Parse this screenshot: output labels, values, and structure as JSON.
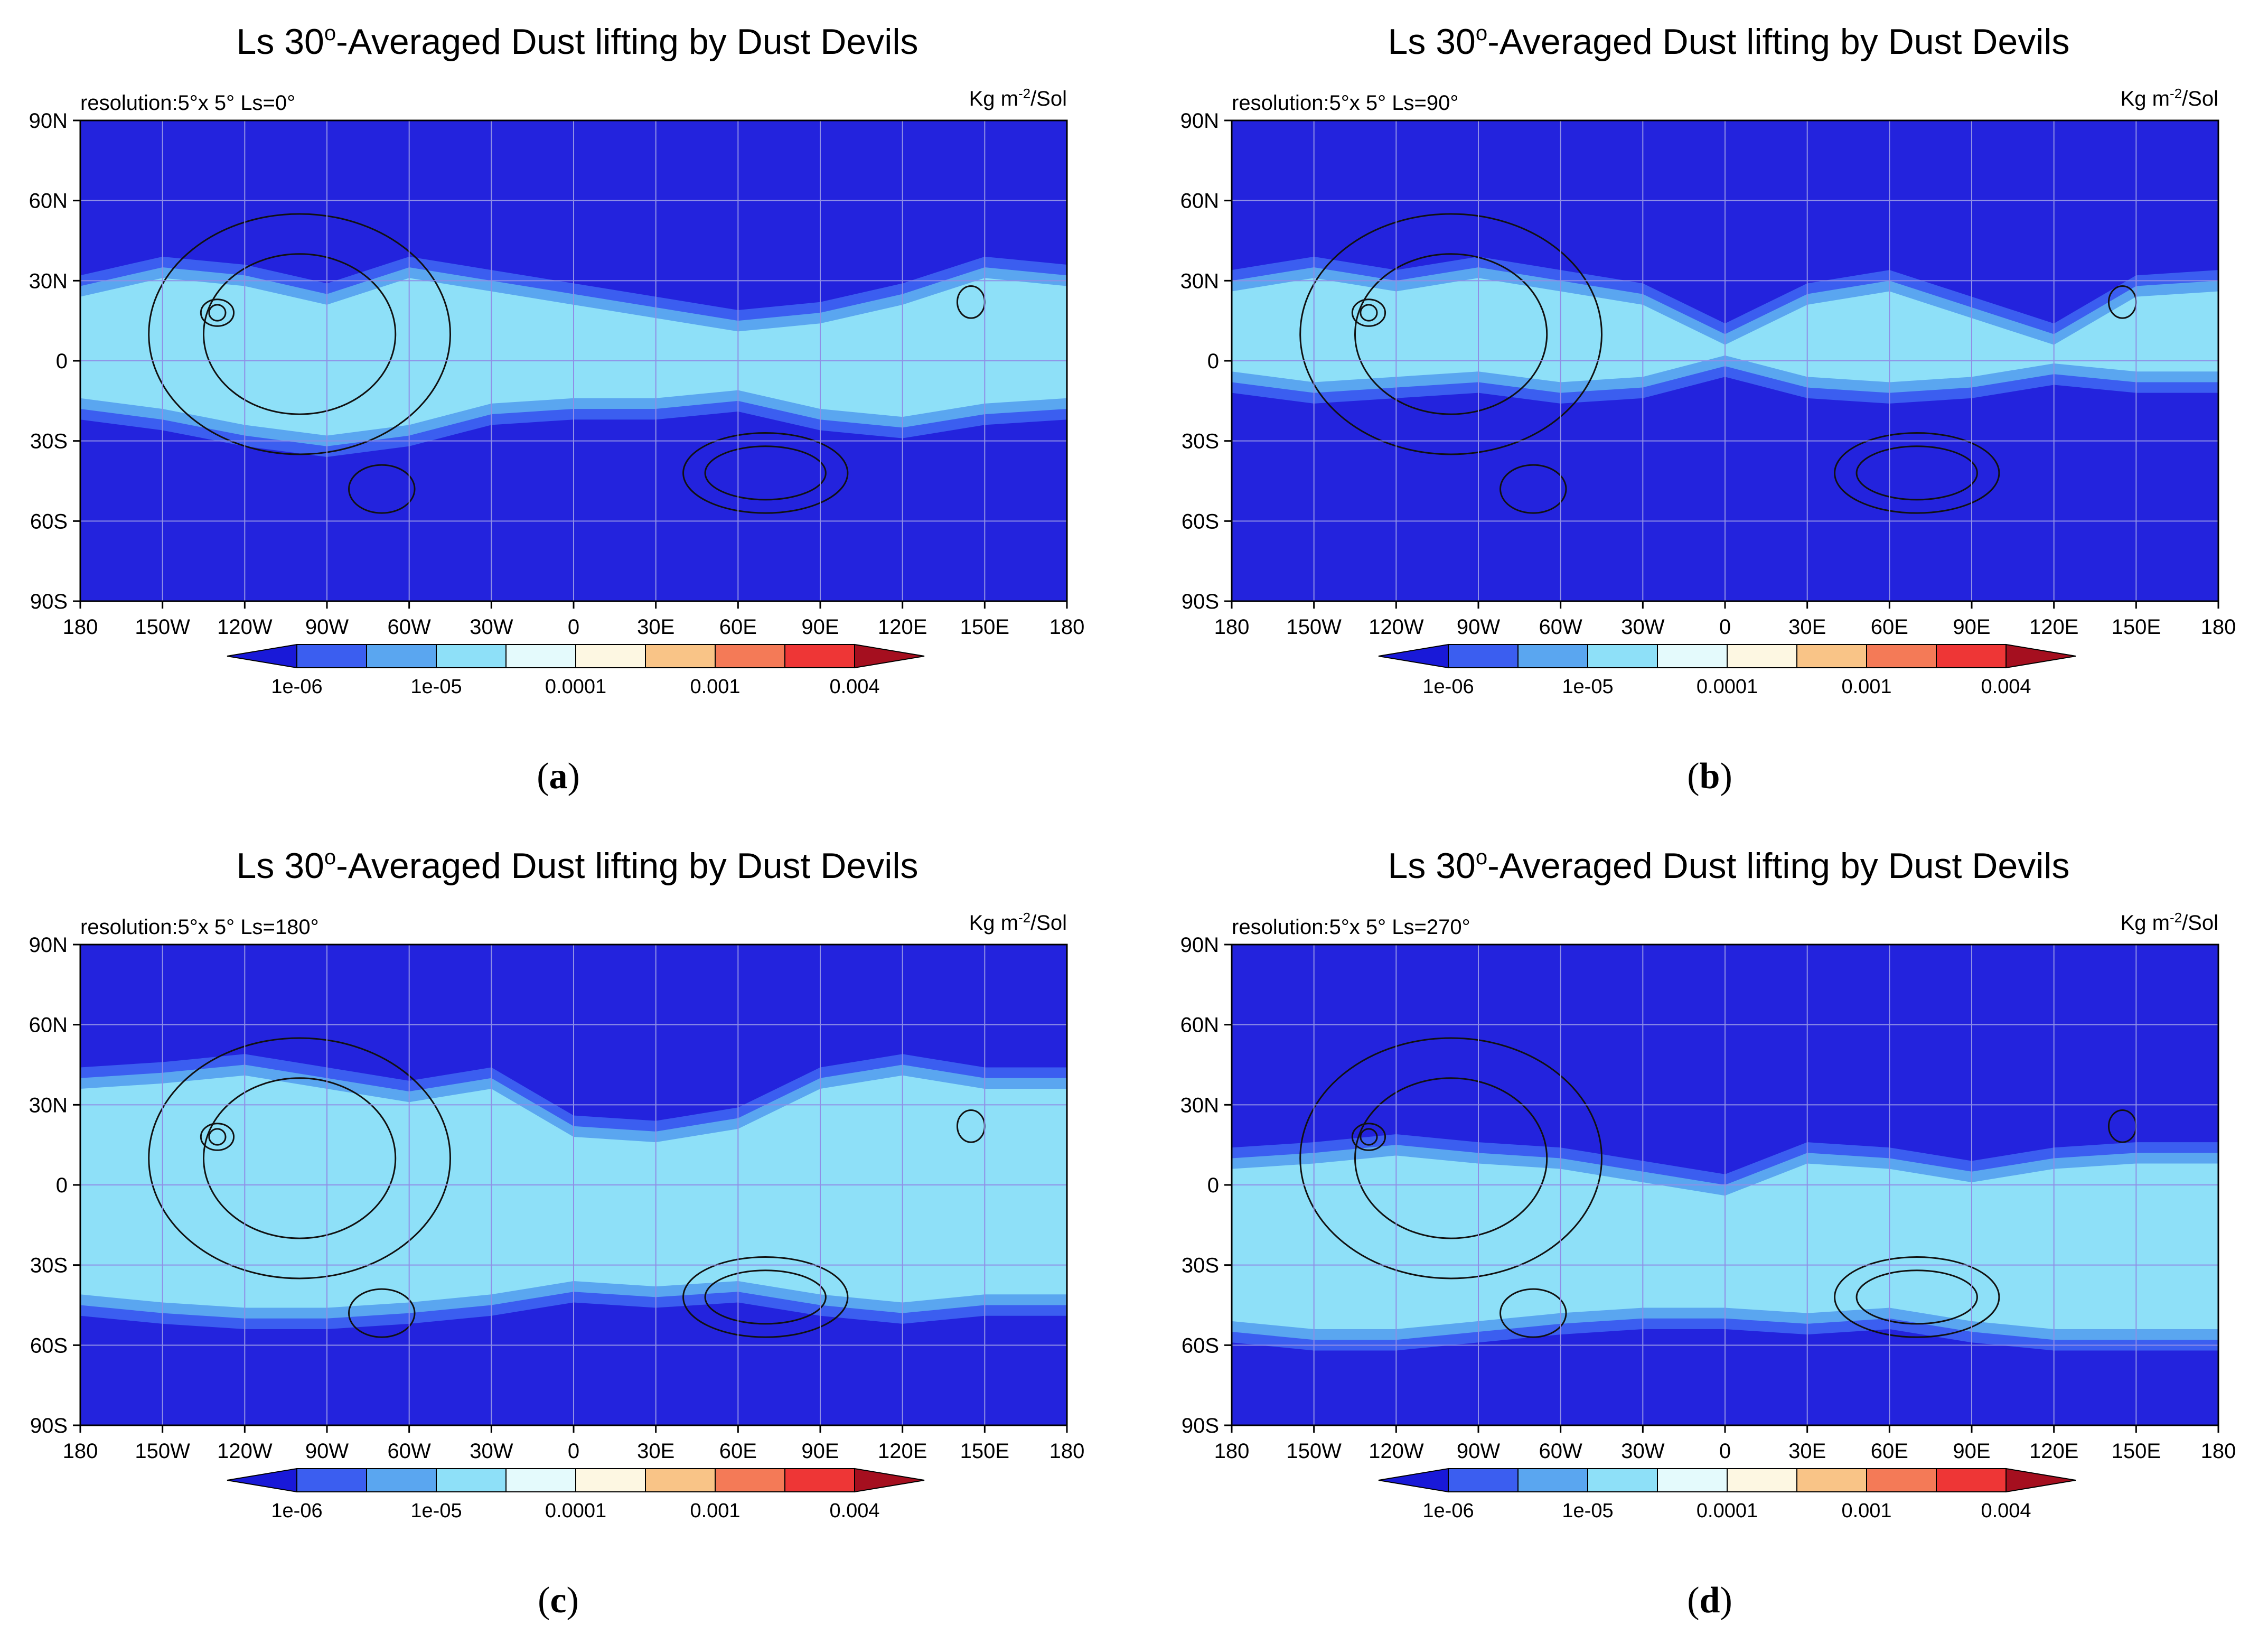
{
  "chart_data": [
    {
      "type": "heatmap",
      "id": "a",
      "title_prefix": "Ls 30",
      "title_suffix": "-Averaged Dust lifting by Dust Devils",
      "degree": "o",
      "subtitle_left": "resolution:5°x 5°  Ls=0°",
      "units_pre": "Kg m",
      "units_sup": "-2",
      "units_post": "/Sol",
      "x_ticks": [
        "180",
        "150W",
        "120W",
        "90W",
        "60W",
        "30W",
        "0",
        "30E",
        "60E",
        "90E",
        "120E",
        "150E",
        "180"
      ],
      "y_ticks": [
        "90N",
        "60N",
        "30N",
        "0",
        "30S",
        "60S",
        "90S"
      ],
      "xlim": [
        -180,
        180
      ],
      "ylim": [
        -90,
        90
      ],
      "colorbar_levels": [
        1e-06,
        1e-05,
        0.0001,
        0.001,
        0.004
      ],
      "colorbar_labels": [
        "1e-06",
        "1e-05",
        "0.0001",
        "0.001",
        "0.004"
      ],
      "colorbar_colors": [
        "#1919d8",
        "#3b5ef0",
        "#5aa6f0",
        "#8ee0f8",
        "#e4fafc",
        "#fdf7e2",
        "#f9c487",
        "#f47a57",
        "#ee3636",
        "#a50f1f"
      ],
      "background_color": "#2323dd",
      "dust_band": {
        "north_edge": [
          28,
          35,
          32,
          25,
          35,
          30,
          25,
          20,
          15,
          18,
          25,
          35,
          32
        ],
        "south_edge": [
          -18,
          -22,
          -28,
          -32,
          -28,
          -20,
          -18,
          -18,
          -15,
          -22,
          -25,
          -20,
          -18
        ]
      },
      "caption_label": "a"
    },
    {
      "type": "heatmap",
      "id": "b",
      "title_prefix": "Ls 30",
      "title_suffix": "-Averaged Dust lifting by Dust Devils",
      "degree": "o",
      "subtitle_left": "resolution:5°x 5°  Ls=90°",
      "units_pre": "Kg m",
      "units_sup": "-2",
      "units_post": "/Sol",
      "x_ticks": [
        "180",
        "150W",
        "120W",
        "90W",
        "60W",
        "30W",
        "0",
        "30E",
        "60E",
        "90E",
        "120E",
        "150E",
        "180"
      ],
      "y_ticks": [
        "90N",
        "60N",
        "30N",
        "0",
        "30S",
        "60S",
        "90S"
      ],
      "xlim": [
        -180,
        180
      ],
      "ylim": [
        -90,
        90
      ],
      "colorbar_levels": [
        1e-06,
        1e-05,
        0.0001,
        0.001,
        0.004
      ],
      "colorbar_labels": [
        "1e-06",
        "1e-05",
        "0.0001",
        "0.001",
        "0.004"
      ],
      "colorbar_colors": [
        "#1919d8",
        "#3b5ef0",
        "#5aa6f0",
        "#8ee0f8",
        "#e4fafc",
        "#fdf7e2",
        "#f9c487",
        "#f47a57",
        "#ee3636",
        "#a50f1f"
      ],
      "background_color": "#2323dd",
      "dust_band": {
        "north_edge": [
          30,
          35,
          30,
          35,
          30,
          25,
          10,
          25,
          30,
          20,
          10,
          28,
          30
        ],
        "south_edge": [
          -8,
          -12,
          -10,
          -8,
          -12,
          -10,
          -2,
          -10,
          -12,
          -10,
          -5,
          -8,
          -8
        ]
      },
      "caption_label": "b"
    },
    {
      "type": "heatmap",
      "id": "c",
      "title_prefix": "Ls 30",
      "title_suffix": "-Averaged Dust lifting by Dust Devils",
      "degree": "o",
      "subtitle_left": "resolution:5°x 5°  Ls=180°",
      "units_pre": "Kg m",
      "units_sup": "-2",
      "units_post": "/Sol",
      "x_ticks": [
        "180",
        "150W",
        "120W",
        "90W",
        "60W",
        "30W",
        "0",
        "30E",
        "60E",
        "90E",
        "120E",
        "150E",
        "180"
      ],
      "y_ticks": [
        "90N",
        "60N",
        "30N",
        "0",
        "30S",
        "60S",
        "90S"
      ],
      "xlim": [
        -180,
        180
      ],
      "ylim": [
        -90,
        90
      ],
      "colorbar_levels": [
        1e-06,
        1e-05,
        0.0001,
        0.001,
        0.004
      ],
      "colorbar_labels": [
        "1e-06",
        "1e-05",
        "0.0001",
        "0.001",
        "0.004"
      ],
      "colorbar_colors": [
        "#1919d8",
        "#3b5ef0",
        "#5aa6f0",
        "#8ee0f8",
        "#e4fafc",
        "#fdf7e2",
        "#f9c487",
        "#f47a57",
        "#ee3636",
        "#a50f1f"
      ],
      "background_color": "#2323dd",
      "dust_band": {
        "north_edge": [
          40,
          42,
          45,
          40,
          35,
          40,
          22,
          20,
          25,
          40,
          45,
          40,
          40
        ],
        "south_edge": [
          -45,
          -48,
          -50,
          -50,
          -48,
          -45,
          -40,
          -42,
          -40,
          -45,
          -48,
          -45,
          -45
        ]
      },
      "caption_label": "c"
    },
    {
      "type": "heatmap",
      "id": "d",
      "title_prefix": "Ls 30",
      "title_suffix": "-Averaged Dust lifting by Dust Devils",
      "degree": "o",
      "subtitle_left": "resolution:5°x 5°  Ls=270°",
      "units_pre": "Kg m",
      "units_sup": "-2",
      "units_post": "/Sol",
      "x_ticks": [
        "180",
        "150W",
        "120W",
        "90W",
        "60W",
        "30W",
        "0",
        "30E",
        "60E",
        "90E",
        "120E",
        "150E",
        "180"
      ],
      "y_ticks": [
        "90N",
        "60N",
        "30N",
        "0",
        "30S",
        "60S",
        "90S"
      ],
      "xlim": [
        -180,
        180
      ],
      "ylim": [
        -90,
        90
      ],
      "colorbar_levels": [
        1e-06,
        1e-05,
        0.0001,
        0.001,
        0.004
      ],
      "colorbar_labels": [
        "1e-06",
        "1e-05",
        "0.0001",
        "0.001",
        "0.004"
      ],
      "colorbar_colors": [
        "#1919d8",
        "#3b5ef0",
        "#5aa6f0",
        "#8ee0f8",
        "#e4fafc",
        "#fdf7e2",
        "#f9c487",
        "#f47a57",
        "#ee3636",
        "#a50f1f"
      ],
      "background_color": "#2323dd",
      "dust_band": {
        "north_edge": [
          10,
          12,
          15,
          12,
          10,
          5,
          0,
          12,
          10,
          5,
          10,
          12,
          12
        ],
        "south_edge": [
          -55,
          -58,
          -58,
          -55,
          -52,
          -50,
          -50,
          -52,
          -50,
          -55,
          -58,
          -58,
          -58
        ]
      },
      "caption_label": "d"
    }
  ]
}
